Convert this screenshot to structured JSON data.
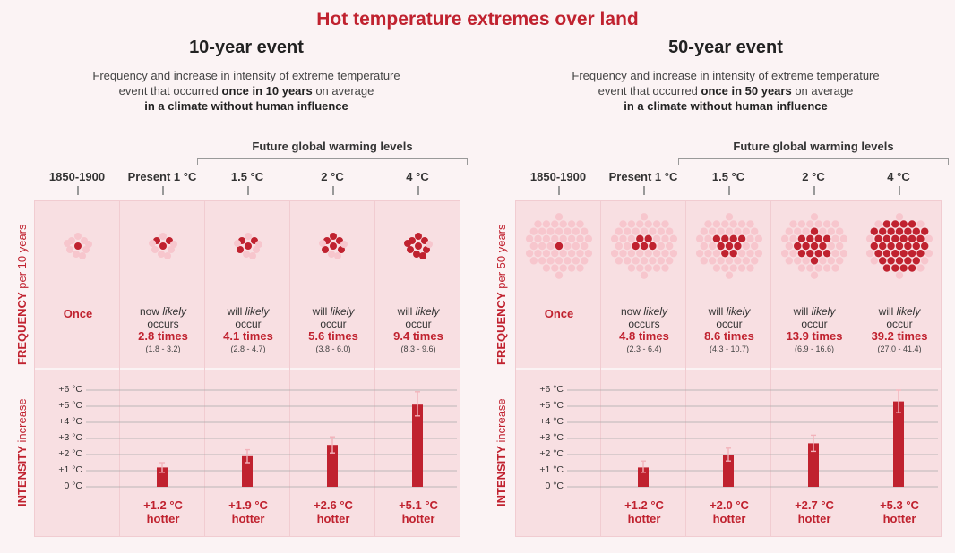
{
  "title": "Hot temperature extremes over land",
  "colors": {
    "accent": "#c0222f",
    "light_dot": "#f7c6cd",
    "panel_bg": "#f8dfe2"
  },
  "panels": [
    {
      "title": "10-year event",
      "subtitle_line1": "Frequency and increase in intensity of extreme temperature",
      "subtitle_line2_pre": "event that occurred ",
      "subtitle_line2_bold": "once in 10 years",
      "subtitle_line2_post": " on average",
      "subtitle_line3": "in a climate without human influence",
      "future_label": "Future global warming levels",
      "freq_axis_bold": "FREQUENCY",
      "freq_axis_rest": " per 10 years",
      "int_axis_bold": "INTENSITY",
      "int_axis_rest": " increase"
    },
    {
      "title": "50-year event",
      "subtitle_line1": "Frequency and increase in intensity of extreme temperature",
      "subtitle_line2_pre": "event that occurred ",
      "subtitle_line2_bold": "once in 50 years",
      "subtitle_line2_post": " on average",
      "subtitle_line3": "in a climate without human influence",
      "future_label": "Future global warming levels",
      "freq_axis_bold": "FREQUENCY",
      "freq_axis_rest": " per 50 years",
      "int_axis_bold": "INTENSITY",
      "int_axis_rest": " increase"
    }
  ],
  "chart_data": [
    {
      "type": "bar",
      "title": "10-year event",
      "categories": [
        "1850-1900",
        "Present 1 °C",
        "1.5 °C",
        "2 °C",
        "4 °C"
      ],
      "frequency": {
        "total_dots": 10,
        "values": [
          1,
          2.8,
          4.1,
          5.6,
          9.4
        ],
        "labels": [
          "Once",
          "2.8 times",
          "4.1 times",
          "5.6 times",
          "9.4 times"
        ],
        "prefix": [
          "",
          "now",
          "will",
          "will",
          "will"
        ],
        "verb": [
          "",
          "occurs",
          "occur",
          "occur",
          "occur"
        ],
        "ranges": [
          "",
          "(1.8 - 3.2)",
          "(2.8 - 4.7)",
          "(3.8 - 6.0)",
          "(8.3 - 9.6)"
        ]
      },
      "intensity": {
        "values": [
          null,
          1.2,
          1.9,
          2.6,
          5.1
        ],
        "err_low": [
          null,
          0.9,
          1.5,
          2.1,
          4.4
        ],
        "err_high": [
          null,
          1.5,
          2.3,
          3.1,
          5.9
        ],
        "labels": [
          "",
          "+1.2 °C",
          "+1.9 °C",
          "+2.6 °C",
          "+5.1 °C"
        ],
        "suffix": "hotter"
      },
      "yticks": [
        "0 °C",
        "+1 °C",
        "+2 °C",
        "+3 °C",
        "+4 °C",
        "+5 °C",
        "+6 °C"
      ],
      "ylim": [
        0,
        6
      ]
    },
    {
      "type": "bar",
      "title": "50-year event",
      "categories": [
        "1850-1900",
        "Present 1 °C",
        "1.5 °C",
        "2 °C",
        "4 °C"
      ],
      "frequency": {
        "total_dots": 50,
        "values": [
          1,
          4.8,
          8.6,
          13.9,
          39.2
        ],
        "labels": [
          "Once",
          "4.8 times",
          "8.6 times",
          "13.9 times",
          "39.2 times"
        ],
        "prefix": [
          "",
          "now",
          "will",
          "will",
          "will"
        ],
        "verb": [
          "",
          "occurs",
          "occur",
          "occur",
          "occur"
        ],
        "ranges": [
          "",
          "(2.3 - 6.4)",
          "(4.3 - 10.7)",
          "(6.9 - 16.6)",
          "(27.0 - 41.4)"
        ]
      },
      "intensity": {
        "values": [
          null,
          1.2,
          2.0,
          2.7,
          5.3
        ],
        "err_low": [
          null,
          0.9,
          1.6,
          2.2,
          4.6
        ],
        "err_high": [
          null,
          1.6,
          2.4,
          3.2,
          6.0
        ],
        "labels": [
          "",
          "+1.2 °C",
          "+2.0 °C",
          "+2.7 °C",
          "+5.3 °C"
        ],
        "suffix": "hotter"
      },
      "yticks": [
        "0 °C",
        "+1 °C",
        "+2 °C",
        "+3 °C",
        "+4 °C",
        "+5 °C",
        "+6 °C"
      ],
      "ylim": [
        0,
        6
      ]
    }
  ],
  "likely_word": "likely"
}
